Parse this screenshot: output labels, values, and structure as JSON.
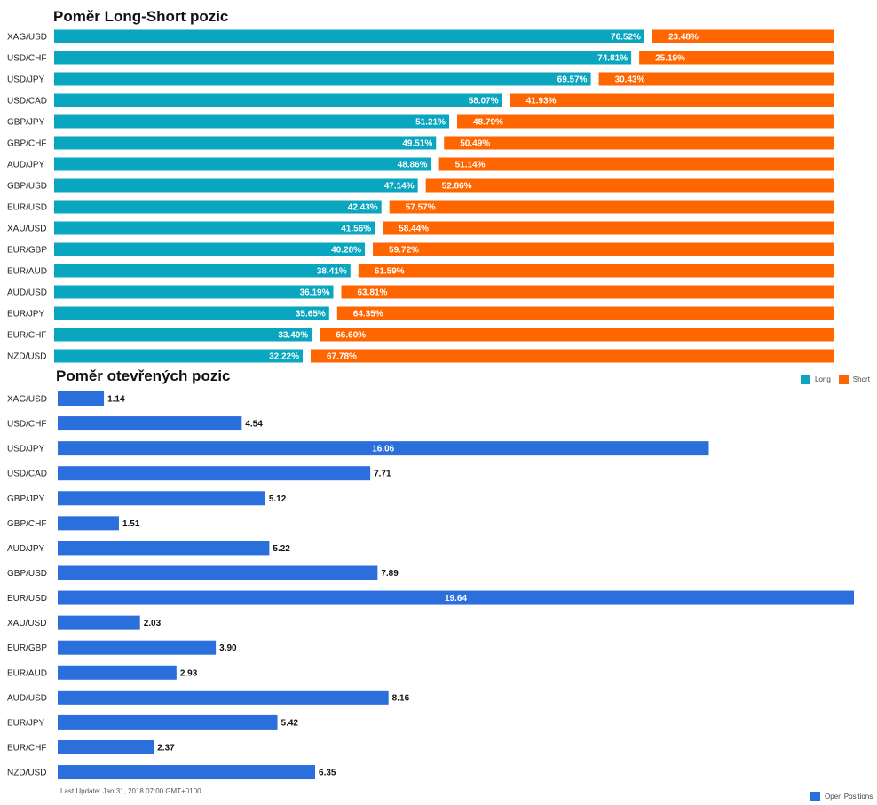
{
  "chart_data": [
    {
      "type": "bar",
      "stacked": true,
      "orientation": "horizontal",
      "title": "Poměr Long-Short pozic",
      "categories": [
        "XAG/USD",
        "USD/CHF",
        "USD/JPY",
        "USD/CAD",
        "GBP/JPY",
        "GBP/CHF",
        "AUD/JPY",
        "GBP/USD",
        "EUR/USD",
        "XAU/USD",
        "EUR/GBP",
        "EUR/AUD",
        "AUD/USD",
        "EUR/JPY",
        "EUR/CHF",
        "NZD/USD"
      ],
      "series": [
        {
          "name": "Long",
          "color": "#0aa6bf",
          "values": [
            76.52,
            74.81,
            69.57,
            58.07,
            51.21,
            49.51,
            48.86,
            47.14,
            42.43,
            41.56,
            40.28,
            38.41,
            36.19,
            35.65,
            33.4,
            32.22
          ],
          "labels": [
            "76.52%",
            "74.81%",
            "69.57%",
            "58.07%",
            "51.21%",
            "49.51%",
            "48.86%",
            "47.14%",
            "42.43%",
            "41.56%",
            "40.28%",
            "38.41%",
            "36.19%",
            "35.65%",
            "33.40%",
            "32.22%"
          ]
        },
        {
          "name": "Short",
          "color": "#ff6600",
          "values": [
            23.48,
            25.19,
            30.43,
            41.93,
            48.79,
            50.49,
            51.14,
            52.86,
            57.57,
            58.44,
            59.72,
            61.59,
            63.81,
            64.35,
            66.6,
            67.78
          ],
          "labels": [
            "23.48%",
            "25.19%",
            "30.43%",
            "41.93%",
            "48.79%",
            "50.49%",
            "51.14%",
            "52.86%",
            "57.57%",
            "58.44%",
            "59.72%",
            "61.59%",
            "63.81%",
            "64.35%",
            "66.60%",
            "67.78%"
          ]
        }
      ],
      "xlim": [
        0,
        100
      ],
      "grid": false,
      "legend": "bottom-right"
    },
    {
      "type": "bar",
      "orientation": "horizontal",
      "title": "Poměr otevřených pozic",
      "categories": [
        "XAG/USD",
        "USD/CHF",
        "USD/JPY",
        "USD/CAD",
        "GBP/JPY",
        "GBP/CHF",
        "AUD/JPY",
        "GBP/USD",
        "EUR/USD",
        "XAU/USD",
        "EUR/GBP",
        "EUR/AUD",
        "AUD/USD",
        "EUR/JPY",
        "EUR/CHF",
        "NZD/USD"
      ],
      "series": [
        {
          "name": "Open Positions",
          "color": "#2a6fdb",
          "values": [
            1.14,
            4.54,
            16.06,
            7.71,
            5.12,
            1.51,
            5.22,
            7.89,
            19.64,
            2.03,
            3.9,
            2.93,
            8.16,
            5.42,
            2.37,
            6.35
          ],
          "labels": [
            "1.14",
            "4.54",
            "16.06",
            "7.71",
            "5.12",
            "1.51",
            "5.22",
            "7.89",
            "19.64",
            "2.03",
            "3.90",
            "2.93",
            "8.16",
            "5.42",
            "2.37",
            "6.35"
          ]
        }
      ],
      "xlim": [
        0,
        19.64
      ],
      "grid": false,
      "legend": "bottom-right"
    }
  ],
  "footer": {
    "last_update": "Last Update: Jan 31, 2018 07:00 GMT+0100"
  }
}
